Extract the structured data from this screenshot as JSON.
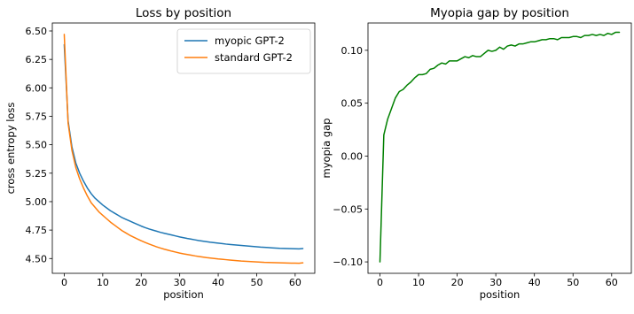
{
  "chart_data": [
    {
      "type": "line",
      "title": "Loss by position",
      "xlabel": "position",
      "ylabel": "cross entropy loss",
      "xlim": [
        -3.1,
        65.1
      ],
      "ylim": [
        4.37,
        6.57
      ],
      "xticks": [
        0,
        10,
        20,
        30,
        40,
        50,
        60
      ],
      "xtick_labels": [
        "0",
        "10",
        "20",
        "30",
        "40",
        "50",
        "60"
      ],
      "yticks": [
        4.5,
        4.75,
        5.0,
        5.25,
        5.5,
        5.75,
        6.0,
        6.25,
        6.5
      ],
      "ytick_labels": [
        "4.50",
        "4.75",
        "5.00",
        "5.25",
        "5.50",
        "5.75",
        "6.00",
        "6.25",
        "6.50"
      ],
      "grid": false,
      "legend_position": "upper-right",
      "series": [
        {
          "name": "myopic GPT-2",
          "color": "#1f77b4",
          "x": [
            0,
            1,
            2,
            3,
            4,
            5,
            6,
            7,
            8,
            9,
            10,
            11,
            12,
            13,
            14,
            15,
            16,
            17,
            18,
            19,
            20,
            21,
            22,
            23,
            24,
            25,
            26,
            27,
            28,
            29,
            30,
            31,
            32,
            33,
            34,
            35,
            36,
            37,
            38,
            39,
            40,
            41,
            42,
            43,
            44,
            45,
            46,
            47,
            48,
            49,
            50,
            51,
            52,
            53,
            54,
            55,
            56,
            57,
            58,
            59,
            60,
            61,
            62
          ],
          "y": [
            6.38,
            5.71,
            5.48,
            5.34,
            5.25,
            5.18,
            5.12,
            5.07,
            5.03,
            5.0,
            4.97,
            4.945,
            4.92,
            4.9,
            4.88,
            4.86,
            4.845,
            4.83,
            4.815,
            4.8,
            4.785,
            4.772,
            4.76,
            4.75,
            4.74,
            4.73,
            4.722,
            4.714,
            4.706,
            4.698,
            4.69,
            4.683,
            4.676,
            4.67,
            4.664,
            4.658,
            4.653,
            4.648,
            4.643,
            4.639,
            4.635,
            4.631,
            4.627,
            4.624,
            4.621,
            4.618,
            4.615,
            4.612,
            4.609,
            4.606,
            4.603,
            4.6,
            4.598,
            4.596,
            4.594,
            4.592,
            4.59,
            4.589,
            4.588,
            4.587,
            4.586,
            4.585,
            4.588
          ]
        },
        {
          "name": "standard GPT-2",
          "color": "#ff7f0e",
          "x": [
            0,
            1,
            2,
            3,
            4,
            5,
            6,
            7,
            8,
            9,
            10,
            11,
            12,
            13,
            14,
            15,
            16,
            17,
            18,
            19,
            20,
            21,
            22,
            23,
            24,
            25,
            26,
            27,
            28,
            29,
            30,
            31,
            32,
            33,
            34,
            35,
            36,
            37,
            38,
            39,
            40,
            41,
            42,
            43,
            44,
            45,
            46,
            47,
            48,
            49,
            50,
            51,
            52,
            53,
            54,
            55,
            56,
            57,
            58,
            59,
            60,
            61,
            62
          ],
          "y": [
            6.47,
            5.69,
            5.45,
            5.3,
            5.2,
            5.12,
            5.05,
            4.99,
            4.95,
            4.91,
            4.88,
            4.85,
            4.82,
            4.795,
            4.77,
            4.745,
            4.725,
            4.705,
            4.688,
            4.672,
            4.656,
            4.642,
            4.628,
            4.615,
            4.603,
            4.592,
            4.582,
            4.573,
            4.564,
            4.556,
            4.548,
            4.541,
            4.535,
            4.529,
            4.523,
            4.518,
            4.513,
            4.508,
            4.504,
            4.5,
            4.496,
            4.493,
            4.49,
            4.487,
            4.484,
            4.481,
            4.478,
            4.476,
            4.474,
            4.472,
            4.47,
            4.468,
            4.466,
            4.465,
            4.464,
            4.463,
            4.462,
            4.461,
            4.46,
            4.459,
            4.459,
            4.458,
            4.462
          ]
        }
      ]
    },
    {
      "type": "line",
      "title": "Myopia gap by position",
      "xlabel": "position",
      "ylabel": "myopia gap",
      "xlim": [
        -3.1,
        65.1
      ],
      "ylim": [
        -0.1108,
        0.1258
      ],
      "xticks": [
        0,
        10,
        20,
        30,
        40,
        50,
        60
      ],
      "xtick_labels": [
        "0",
        "10",
        "20",
        "30",
        "40",
        "50",
        "60"
      ],
      "yticks": [
        -0.1,
        -0.05,
        0.0,
        0.05,
        0.1
      ],
      "ytick_labels": [
        "−0.10",
        "−0.05",
        "0.00",
        "0.05",
        "0.10"
      ],
      "grid": false,
      "series": [
        {
          "color": "#008000",
          "x": [
            0,
            1,
            2,
            3,
            4,
            5,
            6,
            7,
            8,
            9,
            10,
            11,
            12,
            13,
            14,
            15,
            16,
            17,
            18,
            19,
            20,
            21,
            22,
            23,
            24,
            25,
            26,
            27,
            28,
            29,
            30,
            31,
            32,
            33,
            34,
            35,
            36,
            37,
            38,
            39,
            40,
            41,
            42,
            43,
            44,
            45,
            46,
            47,
            48,
            49,
            50,
            51,
            52,
            53,
            54,
            55,
            56,
            57,
            58,
            59,
            60,
            61,
            62
          ],
          "y": [
            -0.1,
            0.02,
            0.035,
            0.045,
            0.055,
            0.061,
            0.063,
            0.067,
            0.07,
            0.074,
            0.077,
            0.077,
            0.078,
            0.082,
            0.083,
            0.086,
            0.088,
            0.087,
            0.09,
            0.09,
            0.09,
            0.092,
            0.094,
            0.093,
            0.095,
            0.094,
            0.094,
            0.097,
            0.1,
            0.099,
            0.1,
            0.103,
            0.101,
            0.104,
            0.105,
            0.104,
            0.106,
            0.106,
            0.107,
            0.108,
            0.108,
            0.109,
            0.11,
            0.11,
            0.111,
            0.111,
            0.11,
            0.112,
            0.112,
            0.112,
            0.113,
            0.113,
            0.112,
            0.114,
            0.114,
            0.115,
            0.114,
            0.115,
            0.114,
            0.116,
            0.115,
            0.117,
            0.117
          ]
        }
      ]
    }
  ]
}
